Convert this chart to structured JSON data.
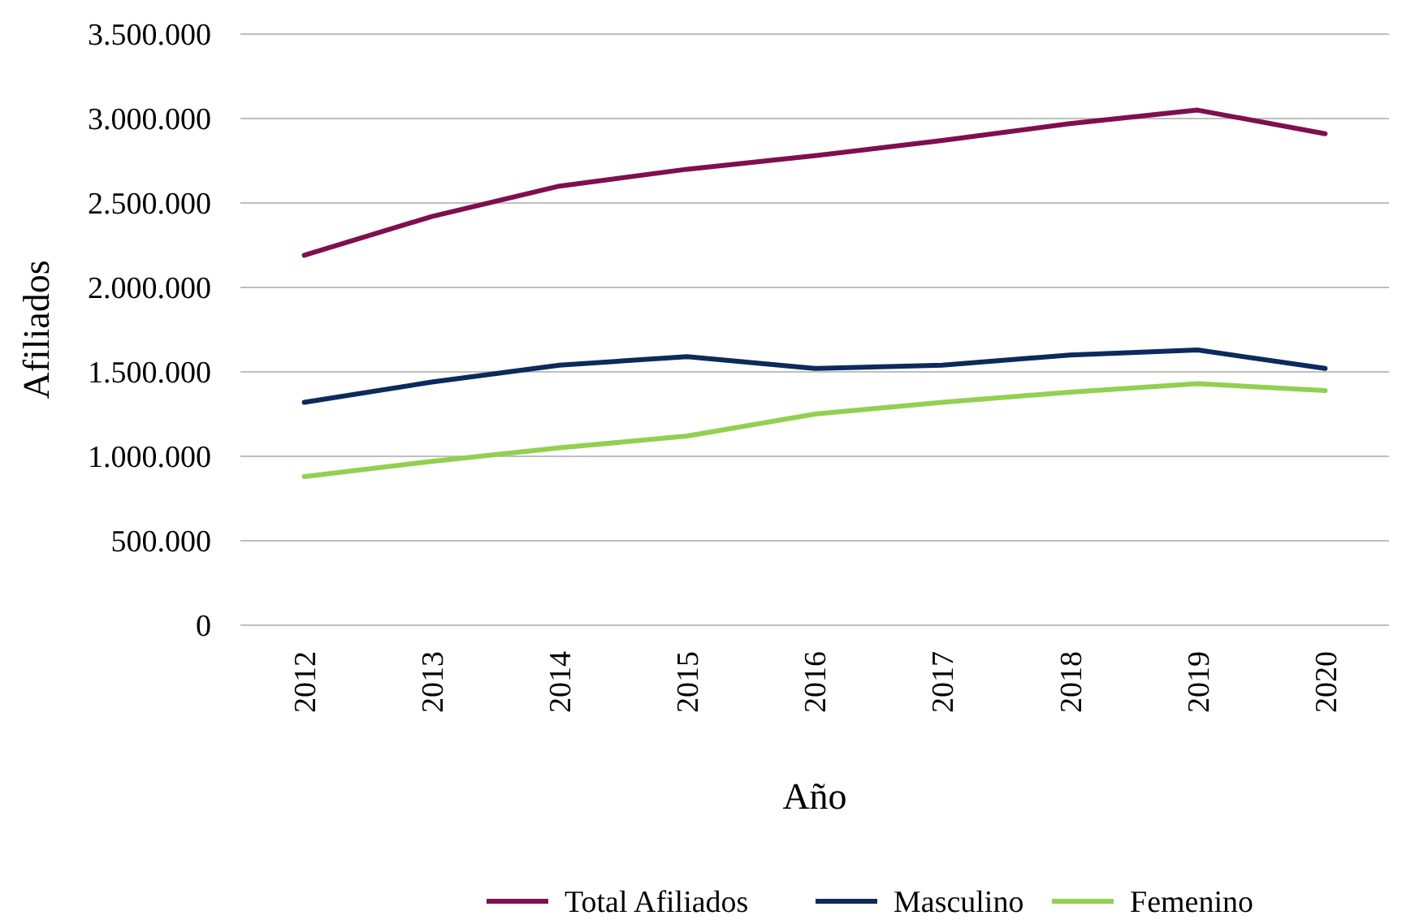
{
  "chart_data": {
    "type": "line",
    "xlabel": "Año",
    "ylabel": "Afiliados",
    "categories": [
      "2012",
      "2013",
      "2014",
      "2015",
      "2016",
      "2017",
      "2018",
      "2019",
      "2020"
    ],
    "series": [
      {
        "name": "Total Afiliados",
        "color": "#7f0f4f",
        "values": [
          2190000,
          2420000,
          2600000,
          2700000,
          2780000,
          2870000,
          2970000,
          3050000,
          2910000
        ]
      },
      {
        "name": "Masculino",
        "color": "#0c2a5b",
        "values": [
          1320000,
          1440000,
          1540000,
          1590000,
          1520000,
          1540000,
          1600000,
          1630000,
          1520000
        ]
      },
      {
        "name": "Femenino",
        "color": "#92d050",
        "values": [
          880000,
          970000,
          1050000,
          1120000,
          1250000,
          1320000,
          1380000,
          1430000,
          1390000
        ]
      }
    ],
    "ylim": [
      0,
      3500000
    ],
    "yticks": [
      {
        "value": 0,
        "label": "0"
      },
      {
        "value": 500000,
        "label": "500.000"
      },
      {
        "value": 1000000,
        "label": "1.000.000"
      },
      {
        "value": 1500000,
        "label": "1.500.000"
      },
      {
        "value": 2000000,
        "label": "2.000.000"
      },
      {
        "value": 2500000,
        "label": "2.500.000"
      },
      {
        "value": 3000000,
        "label": "3.000.000"
      },
      {
        "value": 3500000,
        "label": "3.500.000"
      }
    ],
    "grid": "y",
    "legend": "bottom",
    "marker": "none",
    "line_style": "solid"
  }
}
